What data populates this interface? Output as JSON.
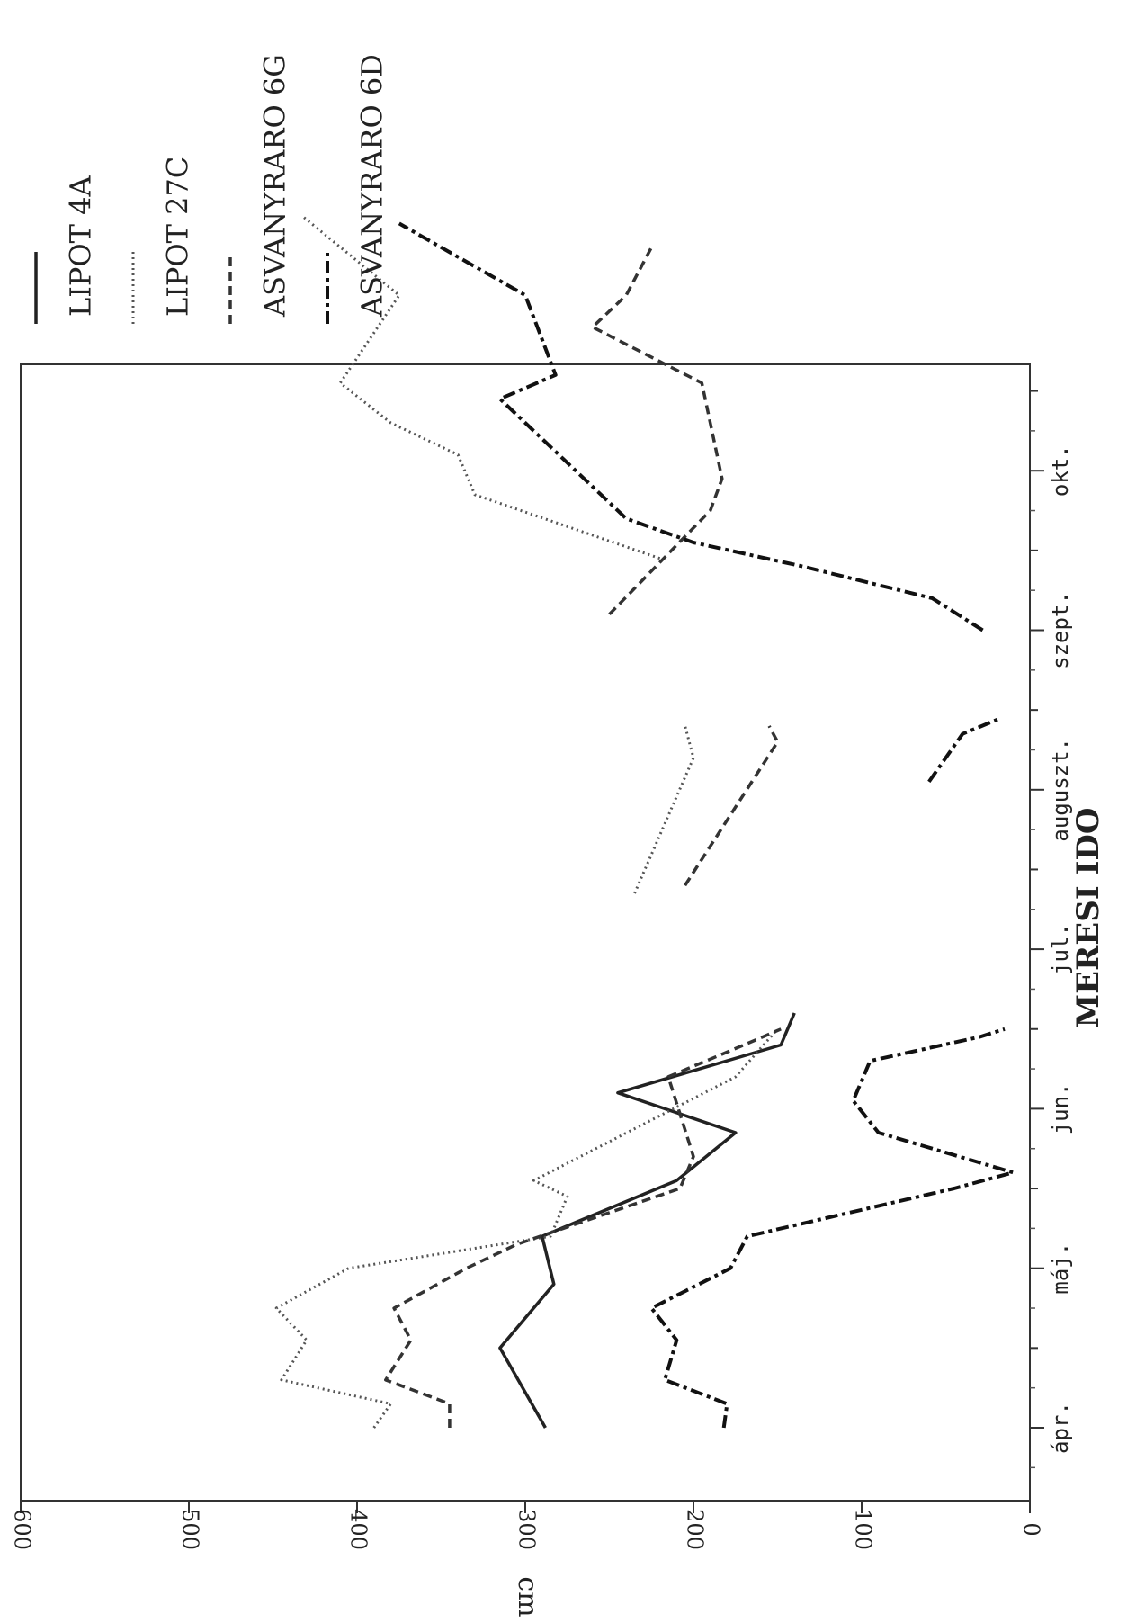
{
  "chart_data": {
    "type": "line",
    "xlabel": "MERESI IDO",
    "ylabel": "cm",
    "ylim": [
      0,
      600
    ],
    "yticks": [
      "0",
      "100",
      "200",
      "300",
      "400",
      "500",
      "600"
    ],
    "xticks": [
      "ápr.",
      "máj.",
      "jun.",
      "jul.",
      "auguszt.",
      "szept.",
      "okt."
    ],
    "grid": false,
    "legend_position": "top-right",
    "series": [
      {
        "name": "LIPOT 4A",
        "style": "solid",
        "color": "#222222",
        "segments": [
          [
            [
              0.0,
              288
            ],
            [
              0.5,
              315
            ],
            [
              0.9,
              283
            ],
            [
              1.2,
              290
            ],
            [
              1.55,
              210
            ],
            [
              1.85,
              175
            ],
            [
              2.1,
              245
            ],
            [
              2.4,
              148
            ],
            [
              2.6,
              140
            ]
          ]
        ]
      },
      {
        "name": "LIPOT 27C",
        "style": "dotted",
        "color": "#555555",
        "segments": [
          [
            [
              0.0,
              390
            ],
            [
              0.15,
              380
            ],
            [
              0.3,
              445
            ],
            [
              0.55,
              430
            ],
            [
              0.75,
              448
            ],
            [
              1.0,
              405
            ],
            [
              1.2,
              285
            ],
            [
              1.45,
              275
            ],
            [
              1.55,
              295
            ],
            [
              2.2,
              175
            ],
            [
              2.5,
              150
            ]
          ],
          [
            [
              3.35,
              235
            ],
            [
              4.2,
              200
            ],
            [
              4.4,
              205
            ]
          ],
          [
            [
              5.45,
              220
            ],
            [
              5.85,
              330
            ],
            [
              6.1,
              340
            ],
            [
              6.3,
              380
            ],
            [
              6.55,
              410
            ],
            [
              7.1,
              375
            ],
            [
              7.6,
              433
            ]
          ]
        ]
      },
      {
        "name": "ASVANYRARO 6G",
        "style": "dashed",
        "color": "#333333",
        "segments": [
          [
            [
              0.0,
              345
            ],
            [
              0.15,
              345
            ],
            [
              0.3,
              383
            ],
            [
              0.55,
              368
            ],
            [
              0.75,
              378
            ],
            [
              1.0,
              335
            ],
            [
              1.15,
              305
            ],
            [
              1.5,
              208
            ],
            [
              1.7,
              200
            ],
            [
              2.2,
              215
            ],
            [
              2.4,
              170
            ],
            [
              2.5,
              148
            ]
          ],
          [
            [
              3.4,
              205
            ],
            [
              4.3,
              150
            ],
            [
              4.4,
              155
            ]
          ],
          [
            [
              5.1,
              250
            ],
            [
              5.75,
              190
            ],
            [
              5.95,
              183
            ],
            [
              6.55,
              195
            ],
            [
              6.9,
              260
            ],
            [
              7.1,
              240
            ],
            [
              7.4,
              225
            ]
          ]
        ]
      },
      {
        "name": "ASVANYRARO 6D",
        "style": "dashdot",
        "color": "#111111",
        "segments": [
          [
            [
              0.0,
              182
            ],
            [
              0.15,
              180
            ],
            [
              0.3,
              217
            ],
            [
              0.55,
              210
            ],
            [
              0.75,
              225
            ],
            [
              1.0,
              178
            ],
            [
              1.2,
              168
            ],
            [
              1.5,
              45
            ],
            [
              1.6,
              10
            ],
            [
              1.85,
              90
            ],
            [
              2.05,
              105
            ],
            [
              2.3,
              95
            ],
            [
              2.45,
              30
            ],
            [
              2.5,
              15
            ]
          ],
          [
            [
              4.05,
              60
            ],
            [
              4.35,
              40
            ],
            [
              4.45,
              17
            ]
          ],
          [
            [
              5.0,
              28
            ],
            [
              5.2,
              58
            ],
            [
              5.4,
              135
            ],
            [
              5.55,
              200
            ],
            [
              5.7,
              240
            ],
            [
              6.0,
              270
            ],
            [
              6.45,
              315
            ],
            [
              6.6,
              282
            ],
            [
              7.1,
              300
            ],
            [
              7.55,
              375
            ]
          ]
        ]
      }
    ]
  }
}
